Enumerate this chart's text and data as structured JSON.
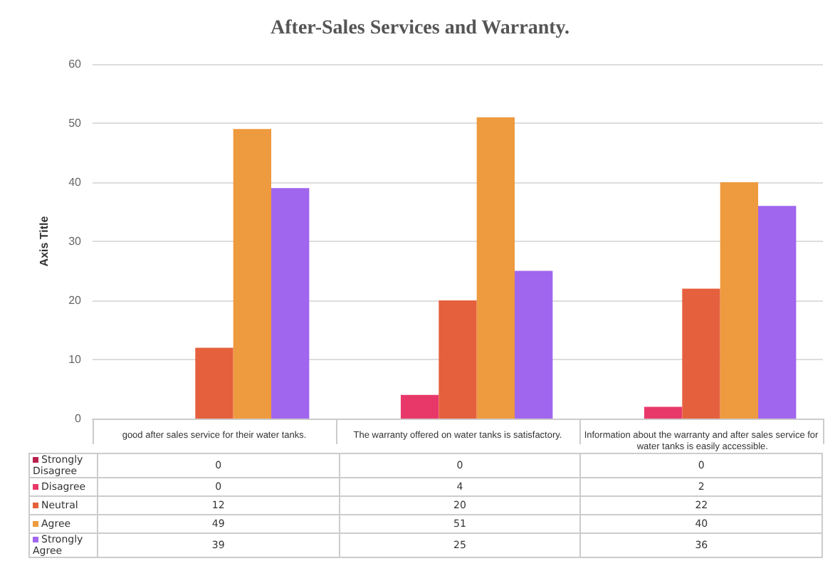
{
  "chart_data": {
    "type": "bar",
    "title": "After-Sales Services and Warranty.",
    "ylabel": "Axis Title",
    "categories": [
      "good after sales service for their water tanks.",
      "The warranty offered on water tanks is satisfactory.",
      "Information about the warranty and after sales service for water tanks is easily accessible."
    ],
    "series": [
      {
        "name": "Strongly Disagree",
        "color": "#b8214e",
        "values": [
          0,
          0,
          0
        ]
      },
      {
        "name": "Disagree",
        "color": "#e8386a",
        "values": [
          0,
          4,
          2
        ]
      },
      {
        "name": "Neutral",
        "color": "#e5603d",
        "values": [
          12,
          20,
          22
        ]
      },
      {
        "name": "Agree",
        "color": "#ee9a3e",
        "values": [
          49,
          51,
          40
        ]
      },
      {
        "name": "Strongly Agree",
        "color": "#a066ee",
        "values": [
          39,
          25,
          36
        ]
      }
    ],
    "ylim": [
      0,
      60
    ],
    "yticks": [
      0,
      10,
      20,
      30,
      40,
      50,
      60
    ],
    "grid": "y",
    "legend": "bottom left",
    "data_labels": true
  }
}
